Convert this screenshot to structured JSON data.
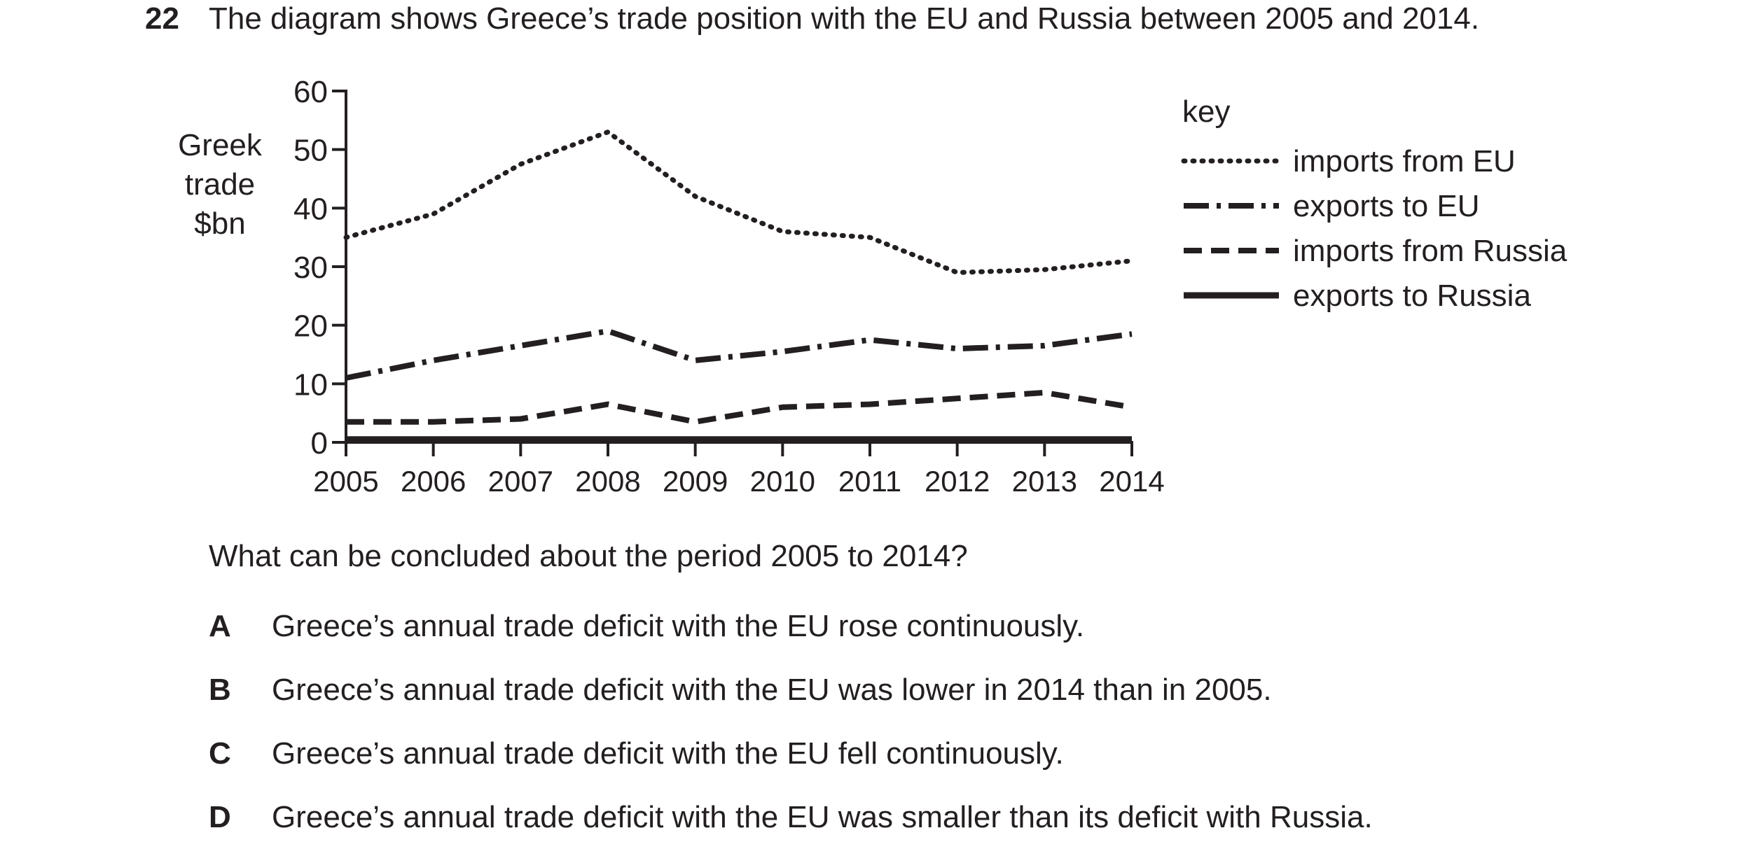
{
  "question": {
    "number": "22",
    "stem": "The diagram shows Greece’s trade position with the EU and Russia between 2005 and 2014.",
    "prompt": "What can be concluded about the period 2005 to 2014?",
    "options": [
      {
        "letter": "A",
        "text": "Greece’s annual trade deficit with the EU rose continuously."
      },
      {
        "letter": "B",
        "text": "Greece’s annual trade deficit with the EU was lower in 2014 than in 2005."
      },
      {
        "letter": "C",
        "text": "Greece’s annual trade deficit with the EU fell continuously."
      },
      {
        "letter": "D",
        "text": "Greece’s annual trade deficit with the EU was smaller than its deficit with Russia."
      }
    ]
  },
  "chart_data": {
    "type": "line",
    "ylabel_lines": [
      "Greek",
      "trade",
      "$bn"
    ],
    "ylim": [
      0,
      60
    ],
    "yticks": [
      0,
      10,
      20,
      30,
      40,
      50,
      60
    ],
    "x": [
      2005,
      2006,
      2007,
      2008,
      2009,
      2010,
      2011,
      2012,
      2013,
      2014
    ],
    "legend_title": "key",
    "legend_position": "right",
    "grid": false,
    "series": [
      {
        "name": "imports from EU",
        "style": "dotted",
        "values": [
          35,
          39,
          47.5,
          53,
          42,
          36,
          35,
          29,
          29.5,
          31
        ]
      },
      {
        "name": "exports to EU",
        "style": "dash-dot",
        "values": [
          11,
          14,
          16.5,
          19,
          14,
          15.5,
          17.5,
          16,
          16.5,
          18.5
        ]
      },
      {
        "name": "imports from Russia",
        "style": "dashed",
        "values": [
          3.5,
          3.5,
          4,
          6.5,
          3.5,
          6,
          6.5,
          7.5,
          8.5,
          6
        ]
      },
      {
        "name": "exports to Russia",
        "style": "solid",
        "values": [
          0.5,
          0.5,
          0.5,
          0.5,
          0.5,
          0.5,
          0.5,
          0.5,
          0.5,
          0.5
        ]
      }
    ],
    "colors": {
      "ink": "#231f20"
    }
  }
}
